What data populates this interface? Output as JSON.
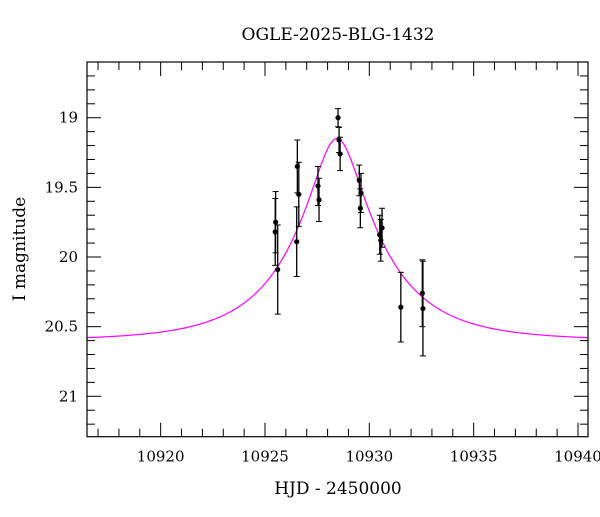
{
  "chart_data": {
    "type": "scatter",
    "title": "OGLE-2025-BLG-1432",
    "xlabel": "HJD - 2450000",
    "ylabel": "I magnitude",
    "xlim": [
      10916.47,
      10940.48
    ],
    "ylim": [
      21.29,
      18.6
    ],
    "y_inverted": true,
    "grid": false,
    "xticks": [
      10920,
      10925,
      10930,
      10935,
      10940
    ],
    "xtick_labels": [
      "10920",
      "10925",
      "10930",
      "10935",
      "10940"
    ],
    "x_minor_step": 1,
    "yticks": [
      19,
      19.5,
      20,
      20.5,
      21
    ],
    "ytick_labels": [
      "19",
      "19.5",
      "20",
      "20.5",
      "21"
    ],
    "y_minor_step": 0.1,
    "colors": {
      "data": "#000000",
      "model": "#ff00ff"
    },
    "series": [
      {
        "name": "data",
        "x": [
          10925.51,
          10925.49,
          10925.61,
          10926.55,
          10926.62,
          10926.52,
          10927.54,
          10927.59,
          10928.5,
          10928.55,
          10928.6,
          10929.52,
          10929.6,
          10929.57,
          10930.5,
          10930.61,
          10930.55,
          10931.51,
          10932.54,
          10932.57
        ],
        "y": [
          19.75,
          19.82,
          20.09,
          19.35,
          19.55,
          19.89,
          19.49,
          19.59,
          19.0,
          19.16,
          19.26,
          19.45,
          19.54,
          19.65,
          19.84,
          19.79,
          19.88,
          20.36,
          20.26,
          20.37
        ],
        "err": [
          0.22,
          0.24,
          0.32,
          0.19,
          0.23,
          0.25,
          0.14,
          0.155,
          0.065,
          0.09,
          0.12,
          0.11,
          0.14,
          0.14,
          0.14,
          0.14,
          0.15,
          0.25,
          0.24,
          0.34
        ]
      }
    ],
    "model": {
      "name": "model",
      "kind": "paczynski",
      "t0": 10928.45,
      "u0": 0.27,
      "tE": 4.2,
      "baseline_mag": 20.6
    }
  }
}
